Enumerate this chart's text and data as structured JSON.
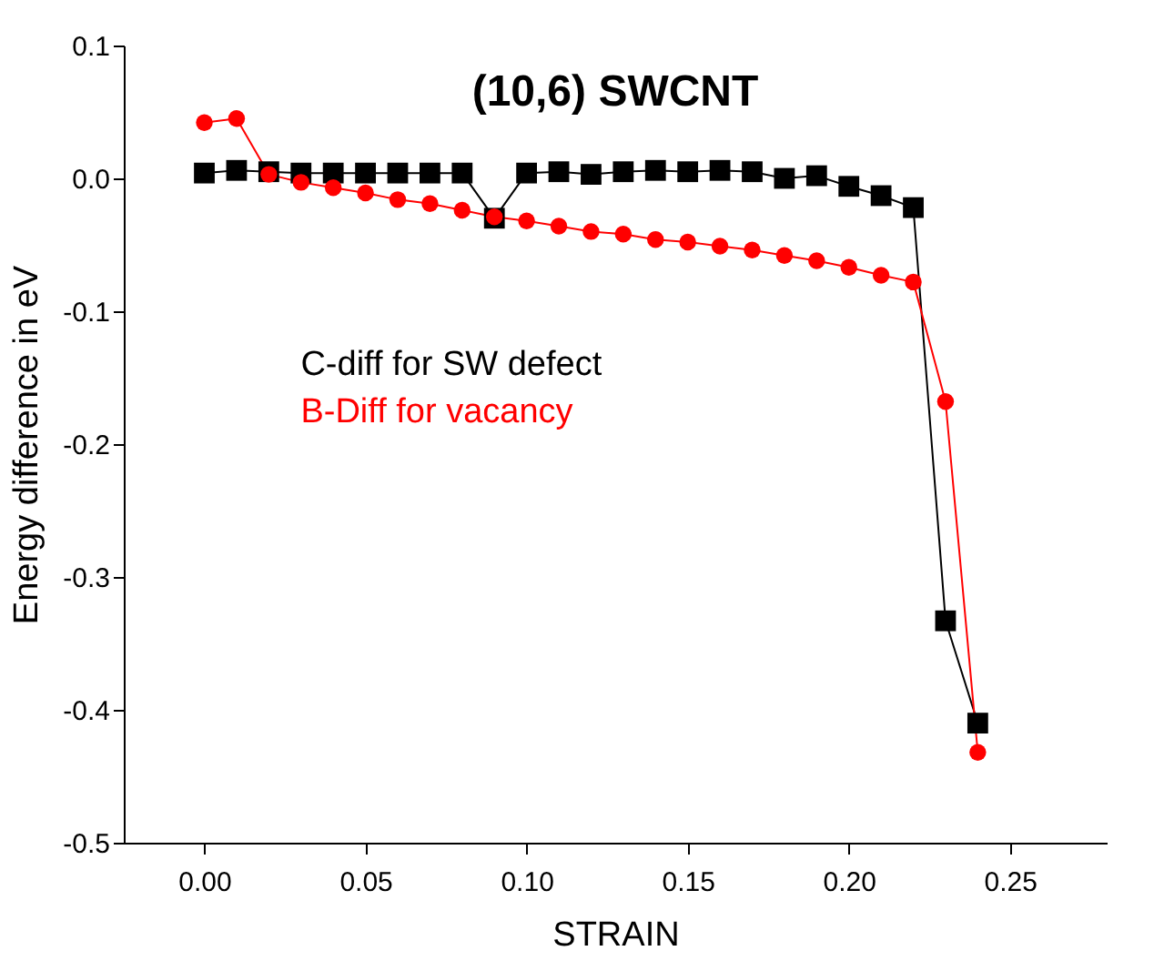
{
  "chart_data": {
    "type": "line",
    "title": "(10,6) SWCNT",
    "xlabel": "STRAIN",
    "ylabel": "Energy difference in eV",
    "x": [
      0.0,
      0.01,
      0.02,
      0.03,
      0.04,
      0.05,
      0.06,
      0.07,
      0.08,
      0.09,
      0.1,
      0.11,
      0.12,
      0.13,
      0.14,
      0.15,
      0.16,
      0.17,
      0.18,
      0.19,
      0.2,
      0.21,
      0.22,
      0.23,
      0.24
    ],
    "series": [
      {
        "name": "C-diff for SW defect",
        "color": "#000000",
        "marker": "square",
        "values": [
          0.004,
          0.006,
          0.005,
          0.004,
          0.004,
          0.004,
          0.004,
          0.004,
          0.004,
          -0.03,
          0.004,
          0.005,
          0.003,
          0.005,
          0.006,
          0.005,
          0.006,
          0.005,
          0.0,
          0.002,
          -0.006,
          -0.013,
          -0.022,
          -0.333,
          -0.41
        ]
      },
      {
        "name": "B-Diff for vacancy",
        "color": "#ff0000",
        "marker": "circle",
        "values": [
          0.042,
          0.045,
          0.003,
          -0.003,
          -0.007,
          -0.011,
          -0.016,
          -0.019,
          -0.024,
          -0.029,
          -0.032,
          -0.036,
          -0.04,
          -0.042,
          -0.046,
          -0.048,
          -0.051,
          -0.054,
          -0.058,
          -0.062,
          -0.067,
          -0.073,
          -0.078,
          -0.168,
          -0.432
        ]
      }
    ],
    "xlim": [
      -0.025,
      0.28
    ],
    "xticks": [
      {
        "value": 0.0,
        "label": "0.00"
      },
      {
        "value": 0.05,
        "label": "0.05"
      },
      {
        "value": 0.1,
        "label": "0.10"
      },
      {
        "value": 0.15,
        "label": "0.15"
      },
      {
        "value": 0.2,
        "label": "0.20"
      },
      {
        "value": 0.25,
        "label": "0.25"
      }
    ],
    "ylim": [
      -0.5,
      0.1
    ],
    "yticks": [
      -0.5,
      -0.4,
      -0.3,
      -0.2,
      -0.1,
      {
        "value": 0.0,
        "label": "0.0"
      },
      0.1
    ],
    "grid": false,
    "legend": "left",
    "line_style": "solid"
  }
}
